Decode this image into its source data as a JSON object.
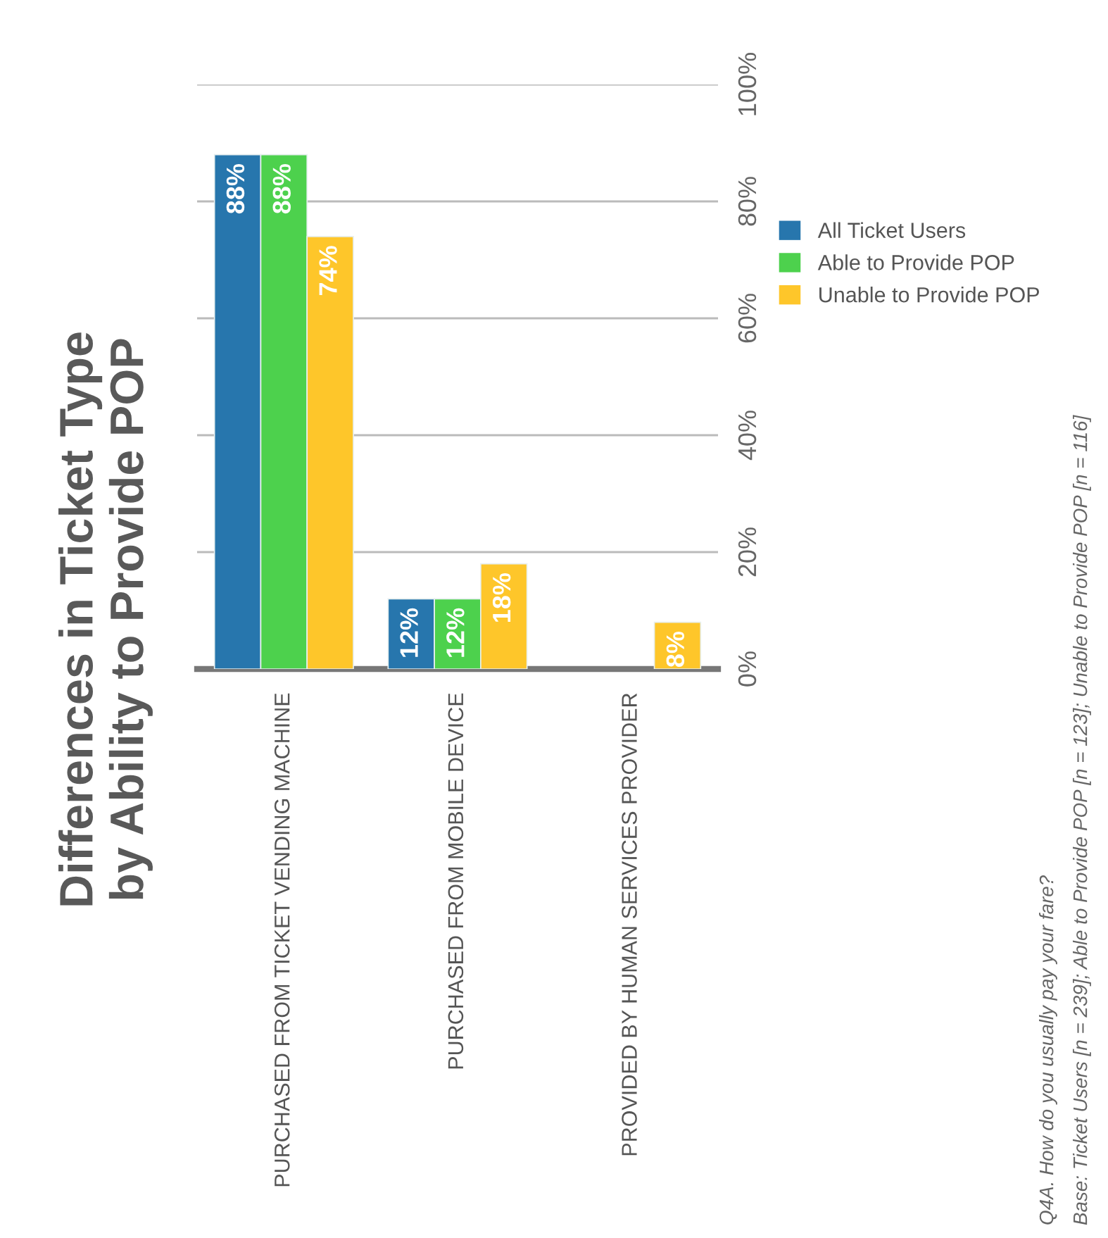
{
  "chart_data": {
    "type": "bar",
    "title": "Differences in Ticket Type\nby Ability to Provide POP",
    "categories": [
      "PURCHASED FROM TICKET VENDING MACHINE",
      "PURCHASED FROM MOBILE DEVICE",
      "PROVIDED BY HUMAN SERVICES PROVIDER"
    ],
    "series": [
      {
        "name": "All Ticket Users",
        "color": "#2776ad",
        "values": [
          88,
          12,
          null
        ],
        "value_labels": [
          "88%",
          "12%",
          null
        ]
      },
      {
        "name": "Able to Provide POP",
        "color": "#4dd14d",
        "values": [
          88,
          12,
          null
        ],
        "value_labels": [
          "88%",
          "12%",
          null
        ]
      },
      {
        "name": "Unable to Provide POP",
        "color": "#fec62a",
        "values": [
          74,
          18,
          8
        ],
        "value_labels": [
          "74%",
          "18%",
          "8%"
        ]
      }
    ],
    "ylim": [
      0,
      100
    ],
    "yticks": [
      {
        "value": 0,
        "label": "0%"
      },
      {
        "value": 20,
        "label": "20%"
      },
      {
        "value": 40,
        "label": "40%"
      },
      {
        "value": 60,
        "label": "60%"
      },
      {
        "value": 80,
        "label": "80%"
      },
      {
        "value": 100,
        "label": "100%"
      }
    ],
    "grid": "y",
    "legend": "right",
    "annotations": [
      "Q4A. How do you usually pay your fare?",
      "Base: Ticket Users [n = 239]; Able to Provide POP [n = 123]; Unable to Provide POP [n = 116]"
    ]
  }
}
